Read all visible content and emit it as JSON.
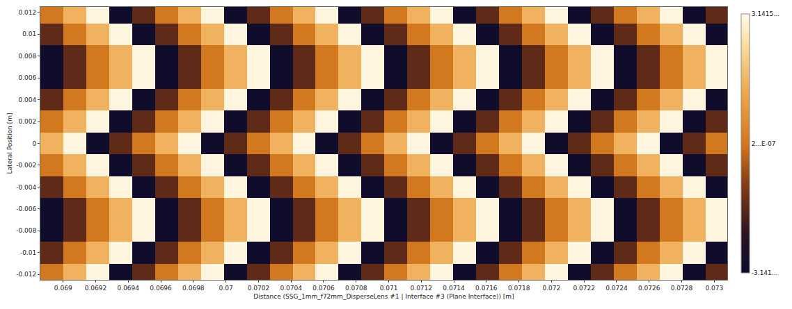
{
  "chart_data": {
    "type": "heatmap",
    "x_label": "Distance (SSG_1mm_f72mm_DisperseLens #1 | Interface #3 (Plane Interface)) [m]",
    "y_label": "Lateral Position [m]",
    "x": [
      0.06893,
      0.069071,
      0.069212,
      0.069353,
      0.069494,
      0.069635,
      0.069776,
      0.069917,
      0.070058,
      0.070199,
      0.07034,
      0.070481,
      0.070622,
      0.070763,
      0.070904,
      0.071045,
      0.071186,
      0.071327,
      0.071468,
      0.071609,
      0.07175,
      0.071891,
      0.072032,
      0.072173,
      0.072314,
      0.072455,
      0.072596,
      0.072737,
      0.072878,
      0.073019
    ],
    "y": [
      -0.012,
      -0.01,
      -0.008,
      -0.006,
      -0.004,
      -0.002,
      0,
      0.002,
      0.004,
      0.006,
      0.008,
      0.01,
      0.012
    ],
    "z": [
      [
        0,
        1.5,
        3,
        -3,
        -1.5,
        0,
        1.5,
        3,
        -3,
        -1.5,
        0,
        1.5,
        3,
        -3,
        -1.5,
        0,
        1.5,
        3,
        -3,
        -1.5,
        0,
        1.5,
        3,
        -3,
        -1.5,
        0,
        1.5,
        3,
        -3,
        -1.5
      ],
      [
        -1.5,
        0,
        1.5,
        3,
        -3,
        -1.5,
        0,
        1.5,
        3,
        -3,
        -1.5,
        0,
        1.5,
        3,
        -3,
        -1.5,
        0,
        1.5,
        3,
        -3,
        -1.5,
        0,
        1.5,
        3,
        -3,
        -1.5,
        0,
        1.5,
        3,
        -3
      ],
      [
        -3,
        -1.5,
        0,
        1.5,
        3,
        -3,
        -1.5,
        0,
        1.5,
        3,
        -3,
        -1.5,
        0,
        1.5,
        3,
        -3,
        -1.5,
        0,
        1.5,
        3,
        -3,
        -1.5,
        0,
        1.5,
        3,
        -3,
        -1.5,
        0,
        1.5,
        3
      ],
      [
        -3,
        -1.5,
        0,
        1.5,
        3,
        -3,
        -1.5,
        0,
        1.5,
        3,
        -3,
        -1.5,
        0,
        1.5,
        3,
        -3,
        -1.5,
        0,
        1.5,
        3,
        -3,
        -1.5,
        0,
        1.5,
        3,
        -3,
        -1.5,
        0,
        1.5,
        3
      ],
      [
        -1.5,
        0,
        1.5,
        3,
        -3,
        -1.5,
        0,
        1.5,
        3,
        -3,
        -1.5,
        0,
        1.5,
        3,
        -3,
        -1.5,
        0,
        1.5,
        3,
        -3,
        -1.5,
        0,
        1.5,
        3,
        -3,
        -1.5,
        0,
        1.5,
        3,
        -3
      ],
      [
        0,
        1.5,
        3,
        -3,
        -1.5,
        0,
        1.5,
        3,
        -3,
        -1.5,
        0,
        1.5,
        3,
        -3,
        -1.5,
        0,
        1.5,
        3,
        -3,
        -1.5,
        0,
        1.5,
        3,
        -3,
        -1.5,
        0,
        1.5,
        3,
        -3,
        -1.5
      ],
      [
        1.5,
        3,
        -3,
        -1.5,
        0,
        1.5,
        3,
        -3,
        -1.5,
        0,
        1.5,
        3,
        -3,
        -1.5,
        0,
        1.5,
        3,
        -3,
        -1.5,
        0,
        1.5,
        3,
        -3,
        -1.5,
        0,
        1.5,
        3,
        -3,
        -1.5,
        0
      ],
      [
        0,
        1.5,
        3,
        -3,
        -1.5,
        0,
        1.5,
        3,
        -3,
        -1.5,
        0,
        1.5,
        3,
        -3,
        -1.5,
        0,
        1.5,
        3,
        -3,
        -1.5,
        0,
        1.5,
        3,
        -3,
        -1.5,
        0,
        1.5,
        3,
        -3,
        -1.5
      ],
      [
        -1.5,
        0,
        1.5,
        3,
        -3,
        -1.5,
        0,
        1.5,
        3,
        -3,
        -1.5,
        0,
        1.5,
        3,
        -3,
        -1.5,
        0,
        1.5,
        3,
        -3,
        -1.5,
        0,
        1.5,
        3,
        -3,
        -1.5,
        0,
        1.5,
        3,
        -3
      ],
      [
        -3,
        -1.5,
        0,
        1.5,
        3,
        -3,
        -1.5,
        0,
        1.5,
        3,
        -3,
        -1.5,
        0,
        1.5,
        3,
        -3,
        -1.5,
        0,
        1.5,
        3,
        -3,
        -1.5,
        0,
        1.5,
        3,
        -3,
        -1.5,
        0,
        1.5,
        3
      ],
      [
        -3,
        -1.5,
        0,
        1.5,
        3,
        -3,
        -1.5,
        0,
        1.5,
        3,
        -3,
        -1.5,
        0,
        1.5,
        3,
        -3,
        -1.5,
        0,
        1.5,
        3,
        -3,
        -1.5,
        0,
        1.5,
        3,
        -3,
        -1.5,
        0,
        1.5,
        3
      ],
      [
        -1.5,
        0,
        1.5,
        3,
        -3,
        -1.5,
        0,
        1.5,
        3,
        -3,
        -1.5,
        0,
        1.5,
        3,
        -3,
        -1.5,
        0,
        1.5,
        3,
        -3,
        -1.5,
        0,
        1.5,
        3,
        -3,
        -1.5,
        0,
        1.5,
        3,
        -3
      ],
      [
        0,
        1.5,
        3,
        -3,
        -1.5,
        0,
        1.5,
        3,
        -3,
        -1.5,
        0,
        1.5,
        3,
        -3,
        -1.5,
        0,
        1.5,
        3,
        -3,
        -1.5,
        0,
        1.5,
        3,
        -3,
        -1.5,
        0,
        1.5,
        3,
        -3,
        -1.5
      ]
    ],
    "xlim": [
      0.06886,
      0.07308
    ],
    "ylim": [
      -0.0125,
      0.0125
    ],
    "xticks": [
      0.069,
      0.0692,
      0.0694,
      0.0696,
      0.0698,
      0.07,
      0.0702,
      0.0704,
      0.0706,
      0.0708,
      0.071,
      0.0712,
      0.0714,
      0.0716,
      0.0718,
      0.072,
      0.0722,
      0.0724,
      0.0726,
      0.0728,
      0.073
    ],
    "yticks": [
      -0.012,
      -0.01,
      -0.008,
      -0.006,
      -0.004,
      -0.002,
      0,
      0.002,
      0.004,
      0.006,
      0.008,
      0.01,
      0.012
    ],
    "colorbar_range": [
      -3.14159,
      3.14159
    ],
    "colorbar_ticks": [
      {
        "value": 3.1415,
        "label": "3.1415..."
      },
      {
        "value": 2e-07,
        "label": "2...E-07"
      },
      {
        "value": -3.141,
        "label": "-3.141..."
      }
    ],
    "grid": false
  }
}
